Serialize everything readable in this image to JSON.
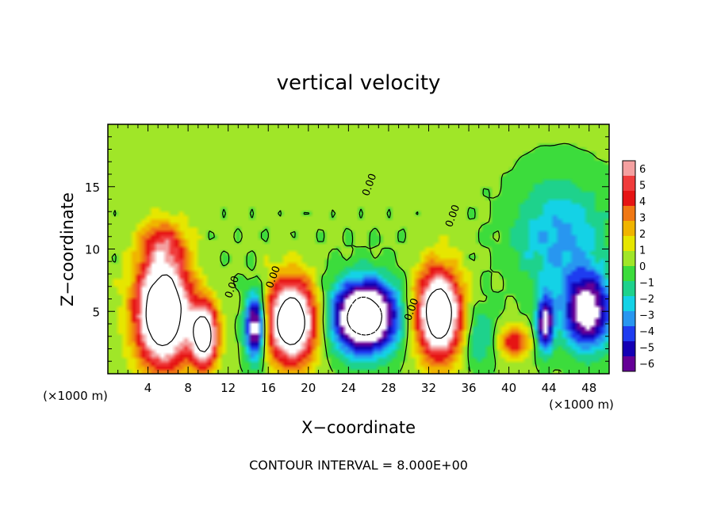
{
  "chart_data": {
    "type": "heatmap",
    "title": "vertical velocity",
    "xlabel": "X−coordinate",
    "ylabel": "Z−coordinate",
    "x_unit_label": "(×1000 m)",
    "y_unit_label": "(×1000 m)",
    "footer": "CONTOUR INTERVAL = 8.000E+00",
    "xlim": [
      0,
      50
    ],
    "ylim": [
      0,
      20
    ],
    "x_ticks": [
      4,
      8,
      12,
      16,
      20,
      24,
      28,
      32,
      36,
      40,
      44,
      48
    ],
    "y_ticks": [
      5,
      10,
      15
    ],
    "contour_labels": [
      "0.00",
      "0.00",
      "0.00",
      "0.00",
      "0.00"
    ],
    "colorbar": {
      "ticks": [
        "6",
        "5",
        "4",
        "3",
        "2",
        "1",
        "0",
        "−1",
        "−2",
        "−3",
        "−4",
        "−5",
        "−6"
      ],
      "range": [
        -6,
        6
      ],
      "colors": [
        "#f4a0a0",
        "#f03c3c",
        "#e61414",
        "#f07814",
        "#f0b400",
        "#e6e600",
        "#a0e628",
        "#3cdc3c",
        "#1ed28c",
        "#14d2e6",
        "#2896f0",
        "#1e3cf0",
        "#1400b4",
        "#640096"
      ]
    },
    "cells": [
      {
        "x": 5.5,
        "z": 5.0,
        "w": 12.0,
        "sx": 2.6,
        "sz": 4.2
      },
      {
        "x": 5.5,
        "z": 10.5,
        "w": 3.0,
        "sx": 2.2,
        "sz": 1.8
      },
      {
        "x": 9.6,
        "z": 3.1,
        "w": 10.0,
        "sx": 1.3,
        "sz": 2.4
      },
      {
        "x": 14.7,
        "z": 3.8,
        "w": -8.0,
        "sx": 1.0,
        "sz": 2.6
      },
      {
        "x": 18.3,
        "z": 4.2,
        "w": 11.0,
        "sx": 2.4,
        "sz": 3.2
      },
      {
        "x": 25.6,
        "z": 4.6,
        "w": -11.0,
        "sx": 3.2,
        "sz": 2.8
      },
      {
        "x": 33.0,
        "z": 4.8,
        "w": 11.0,
        "sx": 2.2,
        "sz": 3.4
      },
      {
        "x": 40.5,
        "z": 2.6,
        "w": 4.2,
        "sx": 1.5,
        "sz": 1.2
      },
      {
        "x": 43.6,
        "z": 4.0,
        "w": -7.0,
        "sx": 0.8,
        "sz": 2.2
      },
      {
        "x": 47.8,
        "z": 5.0,
        "w": -7.5,
        "sx": 2.4,
        "sz": 3.0
      },
      {
        "x": 45.0,
        "z": 11.0,
        "w": -3.0,
        "sx": 4.5,
        "sz": 4.5
      },
      {
        "x": 37.0,
        "z": 3.0,
        "w": -2.2,
        "sx": 1.5,
        "sz": 2.5
      }
    ]
  }
}
